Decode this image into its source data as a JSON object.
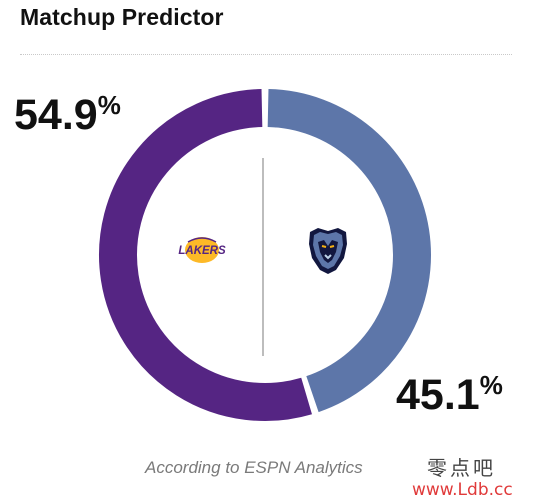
{
  "header": {
    "title": "Matchup Predictor"
  },
  "predictor": {
    "home": {
      "team": "Lakers",
      "percent_value": 54.9,
      "percent_number": "54.9",
      "percent_symbol": "%",
      "color": "#552583"
    },
    "away": {
      "team": "Grizzlies",
      "percent_value": 45.1,
      "percent_number": "45.1",
      "percent_symbol": "%",
      "color": "#5D76A9"
    },
    "lakers_logo_text": "LAKERS",
    "icons": [
      "lakers-logo-icon",
      "grizzlies-logo-icon"
    ]
  },
  "footer": {
    "caption": "According to ESPN Analytics"
  },
  "watermark": {
    "cn_text": "零点吧",
    "url_text": "www.Ldb.cc"
  }
}
